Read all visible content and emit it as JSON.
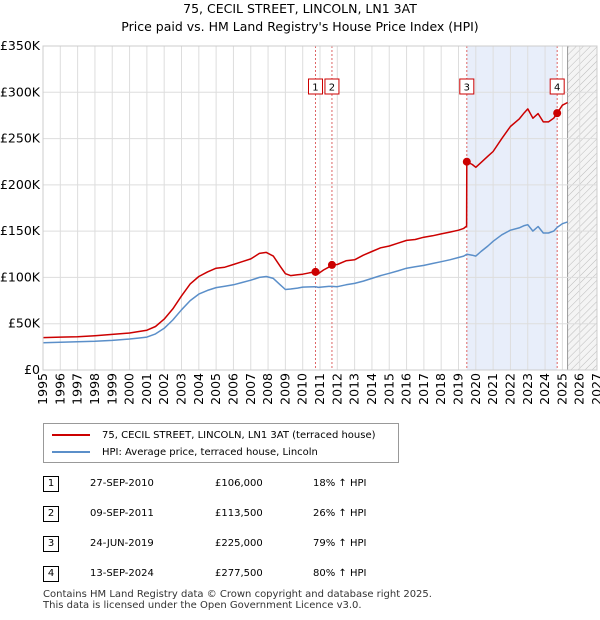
{
  "chart_data": {
    "type": "line",
    "title": "75, CECIL STREET, LINCOLN, LN1 3AT",
    "subtitle": "Price paid vs. HM Land Registry's House Price Index (HPI)",
    "xlabel": "",
    "ylabel": "",
    "xlim": [
      1995,
      2027
    ],
    "ylim": [
      0,
      350000
    ],
    "x_ticks": [
      1995,
      1996,
      1997,
      1998,
      1999,
      2000,
      2001,
      2002,
      2003,
      2004,
      2005,
      2006,
      2007,
      2008,
      2009,
      2010,
      2011,
      2012,
      2013,
      2014,
      2015,
      2016,
      2017,
      2018,
      2019,
      2020,
      2021,
      2022,
      2023,
      2024,
      2025,
      2026,
      2027
    ],
    "y_ticks": [
      0,
      50000,
      100000,
      150000,
      200000,
      250000,
      300000,
      350000
    ],
    "y_tick_labels": [
      "£0",
      "£50K",
      "£100K",
      "£150K",
      "£200K",
      "£250K",
      "£300K",
      "£350K"
    ],
    "grid": true,
    "shaded_period": [
      2019.48,
      2024.7
    ],
    "forecast_start": 2025.3,
    "series": [
      {
        "name": "75, CECIL STREET, LINCOLN, LN1 3AT (terraced house)",
        "color": "#cc0000",
        "x": [
          1995.0,
          1996.0,
          1997.0,
          1998.0,
          1999.0,
          2000.0,
          2000.5,
          2001.0,
          2001.5,
          2002.0,
          2002.5,
          2003.0,
          2003.5,
          2004.0,
          2004.5,
          2005.0,
          2005.5,
          2006.0,
          2006.5,
          2007.0,
          2007.5,
          2007.9,
          2008.3,
          2008.7,
          2009.0,
          2009.3,
          2009.7,
          2010.0,
          2010.4,
          2010.74,
          2010.9,
          2011.2,
          2011.5,
          2011.69,
          2012.0,
          2012.5,
          2013.0,
          2013.5,
          2014.0,
          2014.5,
          2015.0,
          2015.5,
          2016.0,
          2016.5,
          2017.0,
          2017.5,
          2018.0,
          2018.5,
          2019.0,
          2019.3,
          2019.47,
          2019.48,
          2019.8,
          2020.0,
          2020.3,
          2020.7,
          2021.0,
          2021.5,
          2022.0,
          2022.5,
          2022.8,
          2023.0,
          2023.3,
          2023.6,
          2023.9,
          2024.2,
          2024.5,
          2024.7,
          2025.0,
          2025.3
        ],
        "values": [
          35000,
          35500,
          36000,
          37000,
          38500,
          40000,
          41500,
          43000,
          47000,
          55000,
          66000,
          80000,
          93000,
          101000,
          106000,
          110000,
          111000,
          114000,
          117000,
          120000,
          126000,
          127000,
          123000,
          112000,
          104000,
          102000,
          103000,
          103500,
          105000,
          106000,
          104000,
          108000,
          111000,
          113500,
          114000,
          118000,
          119000,
          124000,
          128000,
          132000,
          134000,
          137000,
          140000,
          141000,
          143500,
          145000,
          147000,
          149000,
          151000,
          153000,
          155500,
          225000,
          222000,
          219000,
          224000,
          231000,
          236000,
          250000,
          263000,
          271000,
          278000,
          282000,
          272000,
          277000,
          268000,
          268000,
          272000,
          277500,
          286000,
          289000
        ]
      },
      {
        "name": "HPI: Average price, terraced house, Lincoln",
        "color": "#5b8fc9",
        "x": [
          1995.0,
          1996.0,
          1997.0,
          1998.0,
          1999.0,
          2000.0,
          2000.5,
          2001.0,
          2001.5,
          2002.0,
          2002.5,
          2003.0,
          2003.5,
          2004.0,
          2004.5,
          2005.0,
          2005.5,
          2006.0,
          2006.5,
          2007.0,
          2007.5,
          2007.9,
          2008.3,
          2008.7,
          2009.0,
          2009.3,
          2009.7,
          2010.0,
          2010.4,
          2010.74,
          2010.9,
          2011.2,
          2011.5,
          2011.69,
          2012.0,
          2012.5,
          2013.0,
          2013.5,
          2014.0,
          2014.5,
          2015.0,
          2015.5,
          2016.0,
          2016.5,
          2017.0,
          2017.5,
          2018.0,
          2018.5,
          2019.0,
          2019.3,
          2019.48,
          2019.8,
          2020.0,
          2020.3,
          2020.7,
          2021.0,
          2021.5,
          2022.0,
          2022.5,
          2022.8,
          2023.0,
          2023.3,
          2023.6,
          2023.9,
          2024.2,
          2024.5,
          2024.7,
          2025.0,
          2025.3
        ],
        "values": [
          29500,
          30000,
          30500,
          31000,
          32000,
          33500,
          34500,
          35500,
          39000,
          45000,
          54000,
          65000,
          75000,
          82000,
          86000,
          89000,
          90500,
          92000,
          94500,
          97000,
          100000,
          101000,
          99000,
          92000,
          87000,
          87500,
          88500,
          89500,
          89800,
          90000,
          89200,
          89800,
          90300,
          90300,
          90000,
          92000,
          93500,
          96000,
          99000,
          102000,
          104500,
          107000,
          110000,
          111500,
          113000,
          115000,
          117000,
          119000,
          121500,
          123000,
          125000,
          124000,
          123000,
          128000,
          134000,
          139000,
          146000,
          151000,
          153500,
          156000,
          157000,
          150000,
          155000,
          148000,
          148000,
          150000,
          154000,
          158000,
          160000
        ]
      }
    ],
    "markers": [
      {
        "id": "1",
        "x": 2010.74,
        "value": 106000
      },
      {
        "id": "2",
        "x": 2011.69,
        "value": 113500
      },
      {
        "id": "3",
        "x": 2019.48,
        "value": 225000
      },
      {
        "id": "4",
        "x": 2024.7,
        "value": 277500
      }
    ]
  },
  "legend": {
    "items": [
      {
        "label": "75, CECIL STREET, LINCOLN, LN1 3AT (terraced house)",
        "color": "#cc0000"
      },
      {
        "label": "HPI: Average price, terraced house, Lincoln",
        "color": "#5b8fc9"
      }
    ]
  },
  "sales": [
    {
      "num": "1",
      "date": "27-SEP-2010",
      "price": "£106,000",
      "hpi": "18% ↑ HPI"
    },
    {
      "num": "2",
      "date": "09-SEP-2011",
      "price": "£113,500",
      "hpi": "26% ↑ HPI"
    },
    {
      "num": "3",
      "date": "24-JUN-2019",
      "price": "£225,000",
      "hpi": "79% ↑ HPI"
    },
    {
      "num": "4",
      "date": "13-SEP-2024",
      "price": "£277,500",
      "hpi": "80% ↑ HPI"
    }
  ],
  "footer": {
    "line1": "Contains HM Land Registry data © Crown copyright and database right 2025.",
    "line2": "This data is licensed under the Open Government Licence v3.0."
  }
}
